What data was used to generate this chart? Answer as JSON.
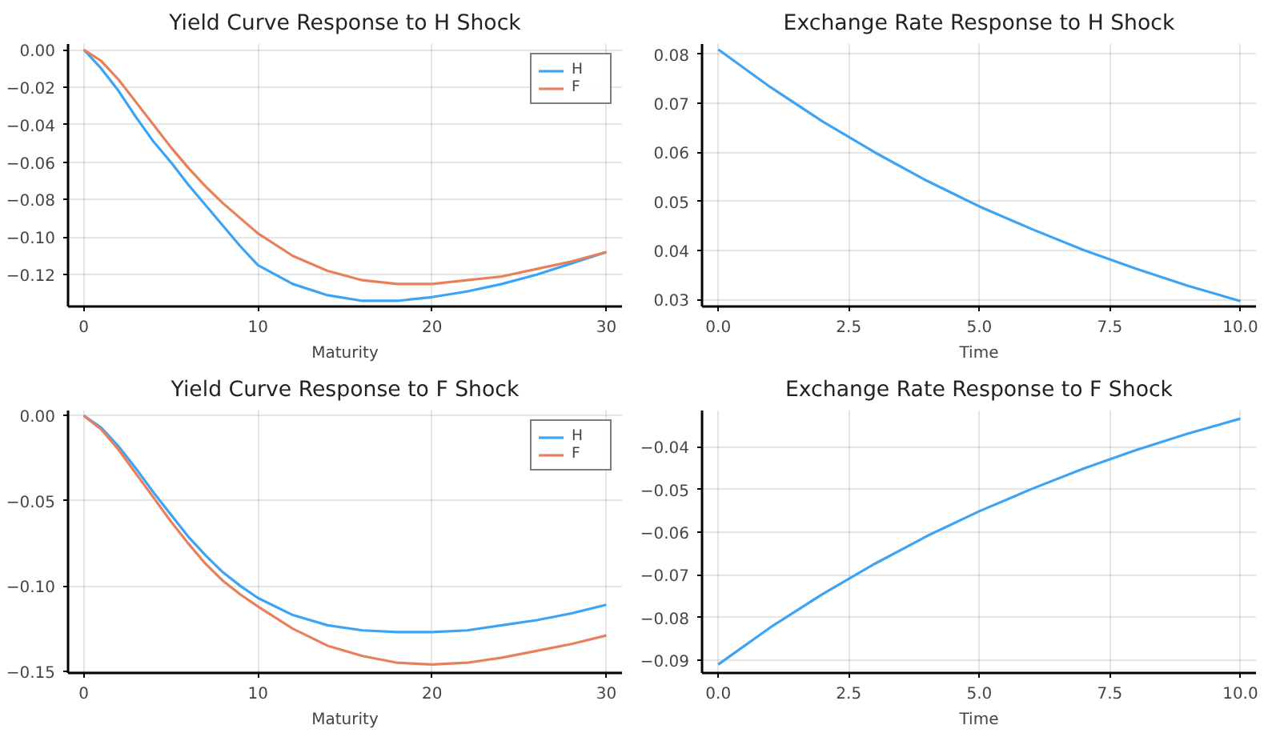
{
  "chart_data": [
    {
      "type": "line",
      "title": "Yield Curve Response to H Shock",
      "xlabel": "Maturity",
      "x": [
        0,
        1,
        2,
        3,
        4,
        5,
        6,
        7,
        8,
        9,
        10,
        12,
        14,
        16,
        18,
        20,
        22,
        24,
        26,
        28,
        30
      ],
      "series": [
        {
          "name": "H",
          "color": "#3da4f5",
          "values": [
            0,
            -0.01,
            -0.022,
            -0.036,
            -0.049,
            -0.06,
            -0.072,
            -0.083,
            -0.094,
            -0.105,
            -0.115,
            -0.125,
            -0.131,
            -0.134,
            -0.134,
            -0.132,
            -0.129,
            -0.125,
            -0.12,
            -0.114,
            -0.108
          ]
        },
        {
          "name": "F",
          "color": "#e8805c",
          "values": [
            0,
            -0.006,
            -0.016,
            -0.028,
            -0.04,
            -0.052,
            -0.063,
            -0.073,
            -0.082,
            -0.09,
            -0.098,
            -0.11,
            -0.118,
            -0.123,
            -0.125,
            -0.125,
            -0.123,
            -0.121,
            -0.117,
            -0.113,
            -0.108
          ]
        }
      ],
      "xlim": [
        -0.9,
        30.9
      ],
      "ylim": [
        -0.137,
        0.003
      ],
      "xticks": [
        0,
        10,
        20,
        30
      ],
      "yticks": [
        {
          "value": 0,
          "label": "0.00"
        },
        {
          "value": -0.02,
          "label": "−0.02"
        },
        {
          "value": -0.04,
          "label": "−0.04"
        },
        {
          "value": -0.06,
          "label": "−0.06"
        },
        {
          "value": -0.08,
          "label": "−0.08"
        },
        {
          "value": -0.1,
          "label": "−0.10"
        },
        {
          "value": -0.12,
          "label": "−0.12"
        }
      ],
      "grid": true,
      "legend": "top right",
      "line_style": "solid"
    },
    {
      "type": "line",
      "title": "Exchange Rate Response to H Shock",
      "xlabel": "Time",
      "x": [
        0,
        1,
        2,
        3,
        4,
        5,
        6,
        7,
        8,
        9,
        10
      ],
      "series": [
        {
          "color": "#3da4f5",
          "values": [
            0.081,
            0.0733,
            0.0663,
            0.06,
            0.0542,
            0.049,
            0.0444,
            0.0401,
            0.0363,
            0.0328,
            0.0297
          ]
        }
      ],
      "xlim": [
        -0.31,
        10.3
      ],
      "ylim": [
        0.0286,
        0.0821
      ],
      "xticks": [
        {
          "value": 0,
          "label": "0.0"
        },
        {
          "value": 2.5,
          "label": "2.5"
        },
        {
          "value": 5,
          "label": "5.0"
        },
        {
          "value": 7.5,
          "label": "7.5"
        },
        {
          "value": 10,
          "label": "10.0"
        }
      ],
      "yticks": [
        0.03,
        0.04,
        0.05,
        0.06,
        0.07,
        0.08
      ],
      "grid": true,
      "line_style": "solid"
    },
    {
      "type": "line",
      "title": "Yield Curve Response to F Shock",
      "xlabel": "Maturity",
      "x": [
        0,
        1,
        2,
        3,
        4,
        5,
        6,
        7,
        8,
        9,
        10,
        12,
        14,
        16,
        18,
        20,
        22,
        24,
        26,
        28,
        30
      ],
      "series": [
        {
          "name": "H",
          "color": "#3da4f5",
          "values": [
            0,
            -0.007,
            -0.018,
            -0.031,
            -0.045,
            -0.058,
            -0.071,
            -0.082,
            -0.092,
            -0.1,
            -0.107,
            -0.117,
            -0.123,
            -0.126,
            -0.127,
            -0.127,
            -0.126,
            -0.123,
            -0.12,
            -0.116,
            -0.111
          ]
        },
        {
          "name": "F",
          "color": "#e8805c",
          "values": [
            0,
            -0.008,
            -0.02,
            -0.034,
            -0.048,
            -0.062,
            -0.075,
            -0.087,
            -0.097,
            -0.105,
            -0.112,
            -0.125,
            -0.135,
            -0.141,
            -0.145,
            -0.146,
            -0.145,
            -0.142,
            -0.138,
            -0.134,
            -0.129
          ]
        }
      ],
      "xlim": [
        -0.9,
        30.9
      ],
      "ylim": [
        -0.151,
        0.003
      ],
      "xticks": [
        0,
        10,
        20,
        30
      ],
      "yticks": [
        {
          "value": 0,
          "label": "0.00"
        },
        {
          "value": -0.05,
          "label": "−0.05"
        },
        {
          "value": -0.1,
          "label": "−0.10"
        },
        {
          "value": -0.15,
          "label": "−0.15"
        }
      ],
      "grid": true,
      "legend": "top right",
      "line_style": "solid"
    },
    {
      "type": "line",
      "title": "Exchange Rate Response to F Shock",
      "xlabel": "Time",
      "x": [
        0,
        1,
        2,
        3,
        4,
        5,
        6,
        7,
        8,
        9,
        10
      ],
      "series": [
        {
          "color": "#3da4f5",
          "values": [
            -0.091,
            -0.0823,
            -0.0745,
            -0.0674,
            -0.0609,
            -0.0551,
            -0.0499,
            -0.0451,
            -0.0408,
            -0.0369,
            -0.0334
          ]
        }
      ],
      "xlim": [
        -0.31,
        10.3
      ],
      "ylim": [
        -0.093,
        -0.0315
      ],
      "xticks": [
        {
          "value": 0,
          "label": "0.0"
        },
        {
          "value": 2.5,
          "label": "2.5"
        },
        {
          "value": 5,
          "label": "5.0"
        },
        {
          "value": 7.5,
          "label": "7.5"
        },
        {
          "value": 10,
          "label": "10.0"
        }
      ],
      "yticks": [
        {
          "value": -0.04,
          "label": "−0.04"
        },
        {
          "value": -0.05,
          "label": "−0.05"
        },
        {
          "value": -0.06,
          "label": "−0.06"
        },
        {
          "value": -0.07,
          "label": "−0.07"
        },
        {
          "value": -0.08,
          "label": "−0.08"
        },
        {
          "value": -0.09,
          "label": "−0.09"
        }
      ],
      "grid": true,
      "line_style": "solid"
    }
  ]
}
